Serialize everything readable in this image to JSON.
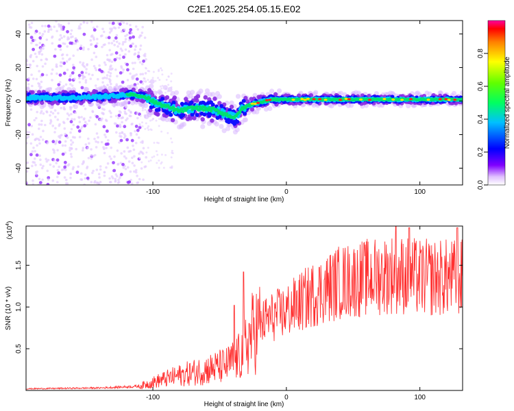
{
  "title": "C2E1.2025.254.05.15.E02",
  "spectrogram": {
    "type": "heatmap",
    "xlabel": "Height of straight line (km)",
    "ylabel": "Frequency (Hz)",
    "xlim": [
      -195,
      132
    ],
    "ylim": [
      -50,
      48
    ],
    "xticks": [
      -100,
      0,
      100
    ],
    "xticklabels": [
      "-100",
      "0",
      "100"
    ],
    "yticks": [
      -40,
      -20,
      0,
      20,
      40
    ],
    "yticklabels": [
      "-40",
      "-20",
      "0",
      "20",
      "40"
    ],
    "colorbar_label": "Normalized spectral amplitude",
    "colorbar_range": [
      0,
      1
    ],
    "colorbar_ticks": [
      0,
      0.2,
      0.4,
      0.6,
      0.8
    ],
    "colorbar_ticklabels": [
      "0.0",
      "0.2",
      "0.4",
      "0.6",
      "0.8"
    ],
    "center_track": [
      {
        "x": -195,
        "y": 2
      },
      {
        "x": -160,
        "y": 2
      },
      {
        "x": -130,
        "y": 3
      },
      {
        "x": -115,
        "y": 4
      },
      {
        "x": -105,
        "y": 2
      },
      {
        "x": -95,
        "y": -2
      },
      {
        "x": -80,
        "y": -6
      },
      {
        "x": -70,
        "y": -4
      },
      {
        "x": -55,
        "y": -5
      },
      {
        "x": -45,
        "y": -8
      },
      {
        "x": -38,
        "y": -10
      },
      {
        "x": -35,
        "y": -6
      },
      {
        "x": -30,
        "y": -3
      },
      {
        "x": -22,
        "y": -1
      },
      {
        "x": -10,
        "y": 1
      },
      {
        "x": 0,
        "y": 1
      },
      {
        "x": 50,
        "y": 1
      },
      {
        "x": 100,
        "y": 1
      },
      {
        "x": 132,
        "y": 1
      }
    ]
  },
  "snr_plot": {
    "type": "line",
    "xlabel": "Height of straight line (km)",
    "ylabel": "SNR (10 * v/v)",
    "multiplier_base": "(x10",
    "multiplier_exp": "4",
    "multiplier_close": ")",
    "xlim": [
      -195,
      132
    ],
    "ylim": [
      0,
      1.97
    ],
    "xticks": [
      -100,
      0,
      100
    ],
    "xticklabels": [
      "-100",
      "0",
      "100"
    ],
    "yticks": [
      0.5,
      1.0,
      1.5
    ],
    "yticklabels": [
      "0.5",
      "1.0",
      "1.5"
    ],
    "series_color": "#ff3030",
    "envelope": [
      {
        "x": -195,
        "y": 0.02
      },
      {
        "x": -140,
        "y": 0.03
      },
      {
        "x": -110,
        "y": 0.05
      },
      {
        "x": -95,
        "y": 0.12
      },
      {
        "x": -80,
        "y": 0.18
      },
      {
        "x": -60,
        "y": 0.25
      },
      {
        "x": -45,
        "y": 0.3
      },
      {
        "x": -35,
        "y": 0.4
      },
      {
        "x": -25,
        "y": 0.7
      },
      {
        "x": -15,
        "y": 0.85
      },
      {
        "x": 0,
        "y": 0.95
      },
      {
        "x": 20,
        "y": 1.15
      },
      {
        "x": 40,
        "y": 1.3
      },
      {
        "x": 60,
        "y": 1.35
      },
      {
        "x": 80,
        "y": 1.4
      },
      {
        "x": 100,
        "y": 1.35
      },
      {
        "x": 120,
        "y": 1.35
      },
      {
        "x": 132,
        "y": 1.35
      }
    ],
    "peaks": [
      {
        "x": -32,
        "y": 1.42
      },
      {
        "x": 82,
        "y": 1.97
      },
      {
        "x": 92,
        "y": 1.95
      },
      {
        "x": 128,
        "y": 1.95
      },
      {
        "x": -39,
        "y": 1.02
      }
    ]
  }
}
